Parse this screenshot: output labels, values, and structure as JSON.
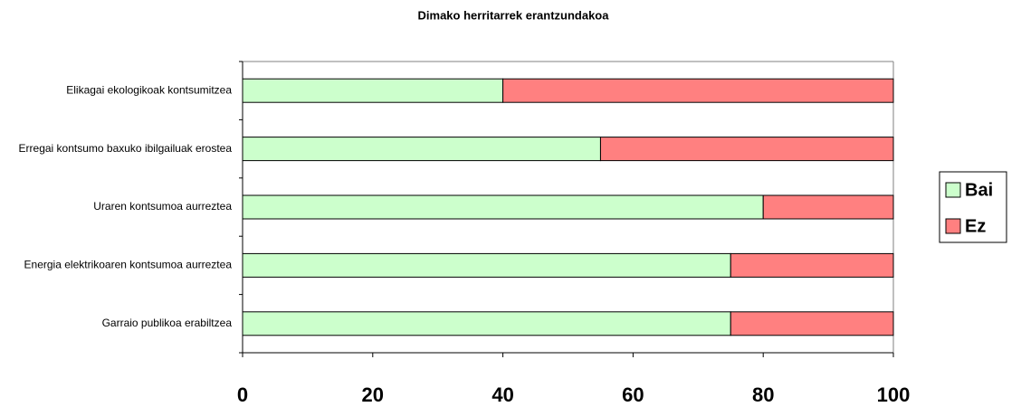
{
  "chart_data": {
    "type": "bar",
    "orientation": "horizontal",
    "stacked": true,
    "title": "Dimako herritarrek erantzundakoa",
    "categories": [
      "Elikagai ekologikoak kontsumitzea",
      "Erregai kontsumo baxuko ibilgailuak erostea",
      "Uraren kontsumoa aurreztea",
      "Energia elektrikoaren kontsumoa aurreztea",
      "Garraio publikoa erabiltzea"
    ],
    "series": [
      {
        "name": "Bai",
        "color": "#ccffcc",
        "values": [
          40,
          55,
          80,
          75,
          75
        ]
      },
      {
        "name": "Ez",
        "color": "#ff8080",
        "values": [
          60,
          45,
          20,
          25,
          25
        ]
      }
    ],
    "xlim": [
      0,
      100
    ],
    "xticks": [
      0,
      20,
      40,
      60,
      80,
      100
    ],
    "legend": "right"
  }
}
